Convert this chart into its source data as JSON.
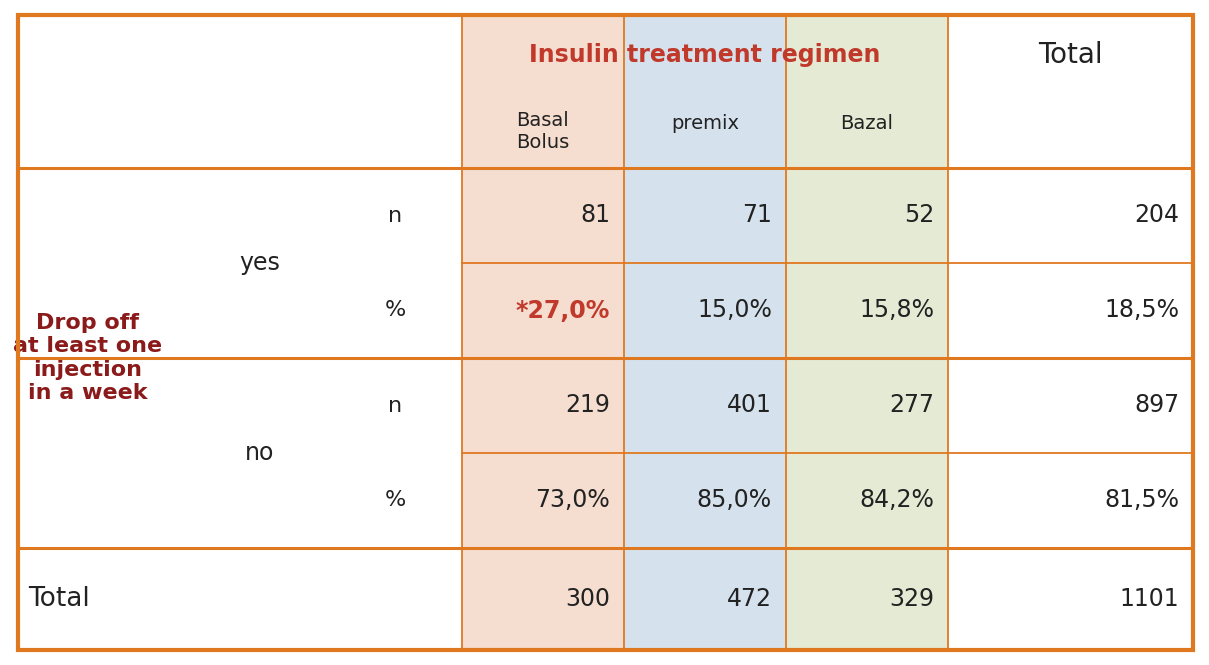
{
  "title_insulin": "Insulin treatment regimen",
  "title_total": "Total",
  "col_headers": [
    "Basal\nBolus",
    "premix",
    "Bazal"
  ],
  "row_label_main": "Drop off\nat least one\ninjection\nin a week",
  "row_label_yes": "yes",
  "row_label_no": "no",
  "row_label_total": "Total",
  "data": {
    "yes_n": [
      "81",
      "71",
      "52",
      "204"
    ],
    "yes_pct": [
      "*27,0%",
      "15,0%",
      "15,8%",
      "18,5%"
    ],
    "no_n": [
      "219",
      "401",
      "277",
      "897"
    ],
    "no_pct": [
      "73,0%",
      "85,0%",
      "84,2%",
      "81,5%"
    ],
    "total": [
      "300",
      "472",
      "329",
      "1101"
    ]
  },
  "col_bg_colors": [
    "#f5ddd0",
    "#d5e2ed",
    "#e5ead5"
  ],
  "header_bg_colors": [
    "#f5ddd0",
    "#d5e2ed",
    "#e5ead5"
  ],
  "outer_border_color": "#e07820",
  "title_color": "#c0392b",
  "row_label_color": "#8b1a1a",
  "highlight_color": "#c0392b",
  "normal_text_color": "#222222",
  "border_color": "#e07820",
  "bg_white": "#ffffff"
}
